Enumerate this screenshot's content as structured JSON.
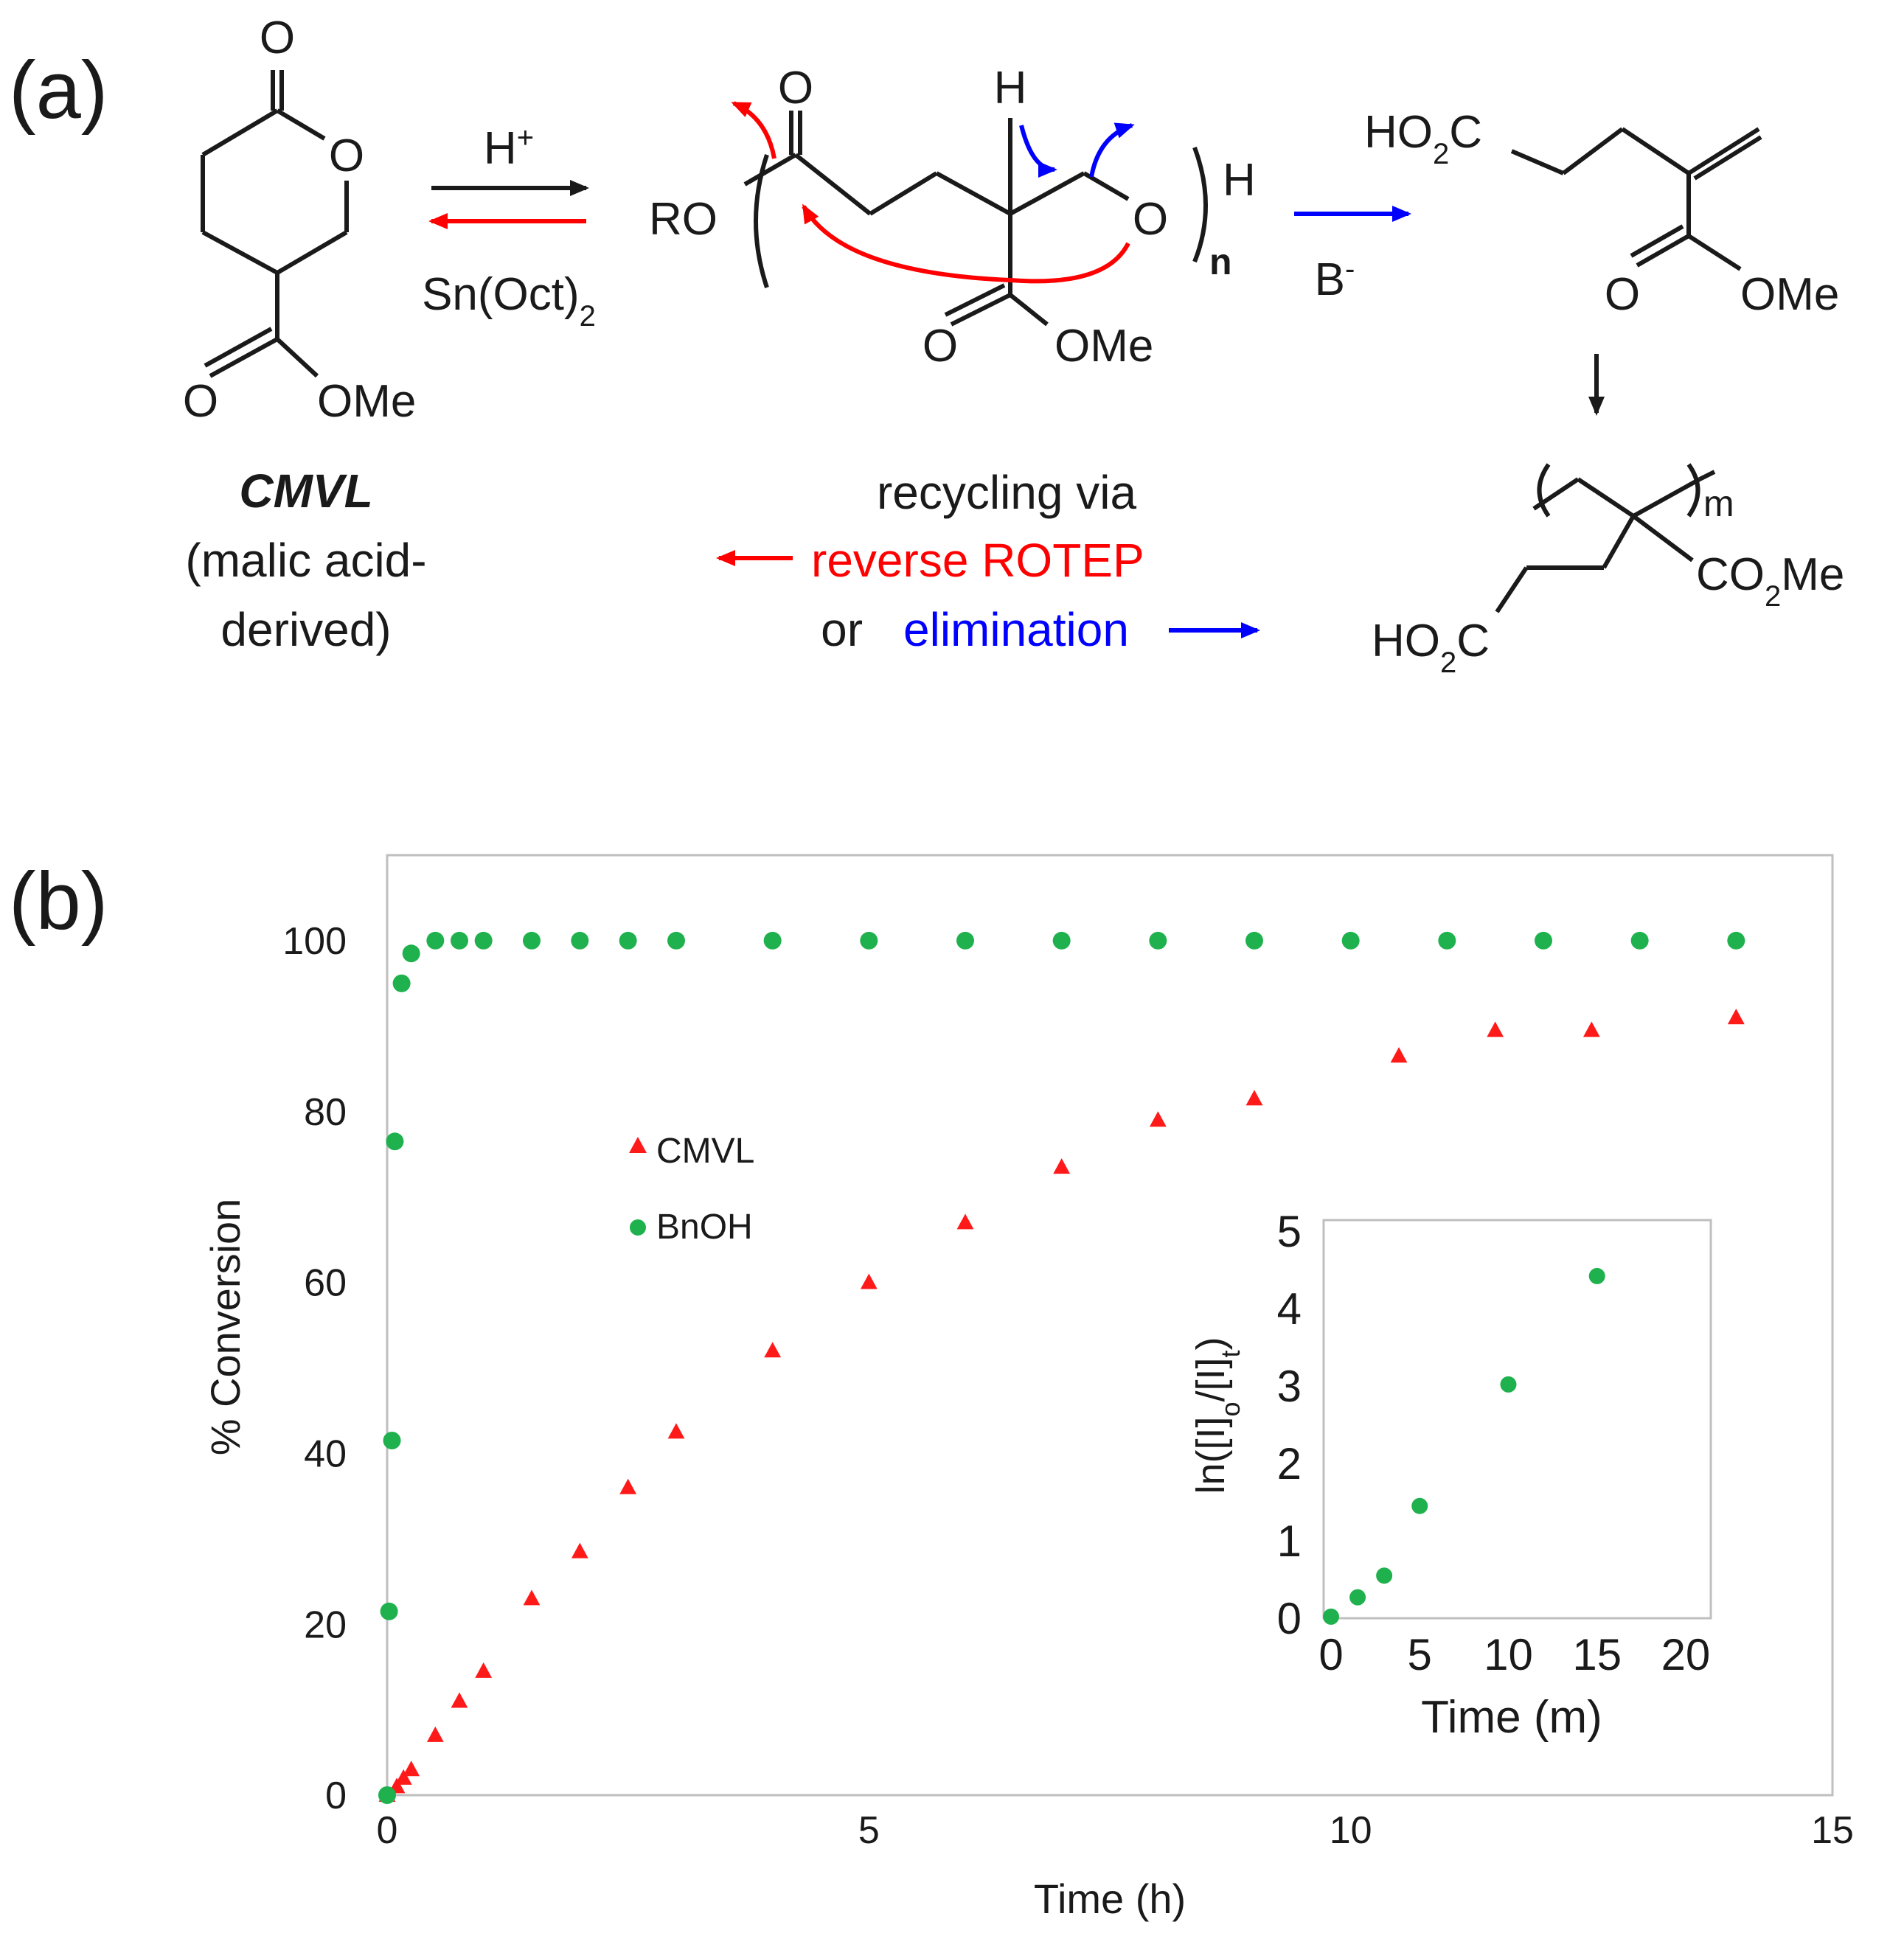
{
  "panel_a": {
    "panel_label": "(a)",
    "monomer": {
      "ring_carbonyl_O": "O",
      "ring_O": "O",
      "ester_O": "O",
      "ester_OMe": "OMe",
      "name": "CMVL",
      "desc_line1": "(malic acid-",
      "desc_line2": "derived)"
    },
    "arrow_forward_label": "H+",
    "arrow_reverse_label": "Sn(Oct)2",
    "polymer": {
      "end_left": "RO",
      "carbonyl_O": "O",
      "methine_H": "H",
      "chain_O": "O",
      "end_right": "H",
      "subscript": "n",
      "ester_O": "O",
      "ester_OMe": "OMe"
    },
    "base_label": "B-",
    "product": {
      "acid": "HO2C",
      "ester_O": "O",
      "ester_OMe": "OMe"
    },
    "product_polymer": {
      "subscript": "m",
      "side_ester": "CO2Me",
      "acid": "HO2C"
    },
    "caption": {
      "line1": "recycling via",
      "line2": "reverse ROTEP",
      "line3_prefix": "or",
      "line3_colored": "elimination"
    },
    "colors": {
      "reverse": "#ff0000",
      "elimination": "#0000ff",
      "ink": "#1a1a1a"
    }
  },
  "panel_b": {
    "panel_label": "(b)"
  },
  "chart_data": [
    {
      "type": "scatter",
      "xlabel": "Time (h)",
      "ylabel": "% Conversion",
      "xlim": [
        0,
        15
      ],
      "ylim": [
        0,
        110
      ],
      "xticks": [
        0,
        5,
        10,
        15
      ],
      "yticks": [
        0,
        20,
        40,
        60,
        80,
        100
      ],
      "legend_position": "center-left",
      "series": [
        {
          "name": "CMVL",
          "marker": "triangle",
          "color": "#ff1a1a",
          "points": [
            [
              0,
              0
            ],
            [
              0.1,
              1
            ],
            [
              0.17,
              2
            ],
            [
              0.25,
              3
            ],
            [
              0.5,
              7
            ],
            [
              0.75,
              11
            ],
            [
              1,
              14.5
            ],
            [
              1.5,
              23
            ],
            [
              2,
              28.5
            ],
            [
              2.5,
              36
            ],
            [
              3,
              42.5
            ],
            [
              4,
              52
            ],
            [
              5,
              60
            ],
            [
              6,
              67
            ],
            [
              7,
              73.5
            ],
            [
              8,
              79
            ],
            [
              9,
              81.5
            ],
            [
              10.5,
              86.5
            ],
            [
              11.5,
              89.5
            ],
            [
              12.5,
              89.5
            ],
            [
              14,
              91
            ]
          ]
        },
        {
          "name": "BnOH",
          "marker": "circle",
          "color": "#1fb14d",
          "points": [
            [
              0,
              0
            ],
            [
              0.02,
              21.5
            ],
            [
              0.05,
              41.5
            ],
            [
              0.08,
              76.5
            ],
            [
              0.15,
              95
            ],
            [
              0.25,
              98.5
            ],
            [
              0.5,
              100
            ],
            [
              0.75,
              100
            ],
            [
              1,
              100
            ],
            [
              1.5,
              100
            ],
            [
              2,
              100
            ],
            [
              2.5,
              100
            ],
            [
              3,
              100
            ],
            [
              4,
              100
            ],
            [
              5,
              100
            ],
            [
              6,
              100
            ],
            [
              7,
              100
            ],
            [
              8,
              100
            ],
            [
              9,
              100
            ],
            [
              10,
              100
            ],
            [
              11,
              100
            ],
            [
              12,
              100
            ],
            [
              13,
              100
            ],
            [
              14,
              100
            ]
          ]
        }
      ]
    },
    {
      "type": "scatter",
      "xlabel": "Time (m)",
      "ylabel": "ln([I]o/[I]t)",
      "xlim": [
        0,
        21
      ],
      "ylim": [
        0,
        5
      ],
      "xticks": [
        0,
        5,
        10,
        15,
        20
      ],
      "yticks": [
        0,
        1,
        2,
        3,
        4,
        5
      ],
      "series": [
        {
          "marker": "circle",
          "color": "#1fb14d",
          "points": [
            [
              0,
              0.02
            ],
            [
              1.5,
              0.27
            ],
            [
              3,
              0.55
            ],
            [
              5,
              1.45
            ],
            [
              10,
              3.02
            ],
            [
              15,
              4.42
            ]
          ]
        }
      ]
    }
  ]
}
